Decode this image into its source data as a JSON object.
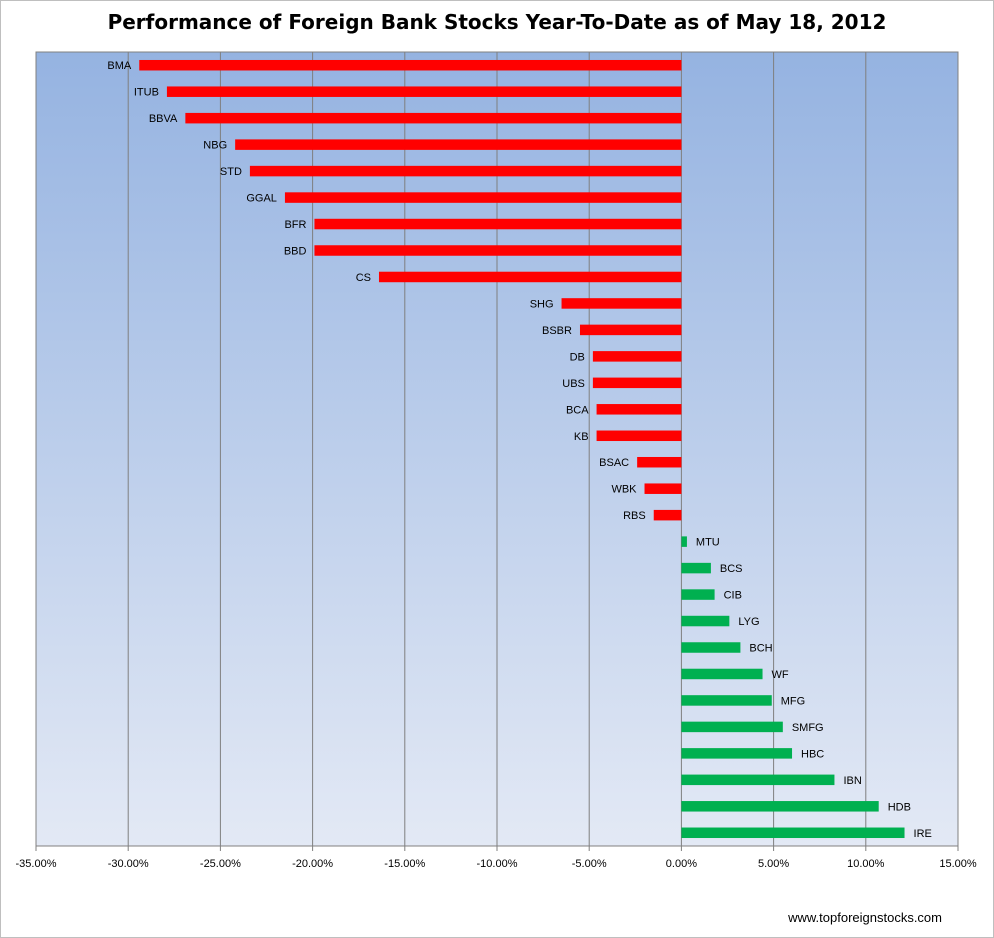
{
  "chart_data": {
    "type": "bar",
    "orientation": "horizontal",
    "title": "Performance of Foreign Bank Stocks Year-To-Date as of May 18, 2012",
    "xlim": [
      -0.35,
      0.15
    ],
    "x_ticks": [
      -0.35,
      -0.3,
      -0.25,
      -0.2,
      -0.15,
      -0.1,
      -0.05,
      0.0,
      0.05,
      0.1,
      0.15
    ],
    "x_tick_labels": [
      "-35.00%",
      "-30.00%",
      "-25.00%",
      "-20.00%",
      "-15.00%",
      "-10.00%",
      "-5.00%",
      "0.00%",
      "5.00%",
      "10.00%",
      "15.00%"
    ],
    "grid": "vertical",
    "legend": "none",
    "colors": {
      "negative": "#ff0000",
      "positive": "#00b050"
    },
    "categories": [
      "BMA",
      "ITUB",
      "BBVA",
      "NBG",
      "STD",
      "GGAL",
      "BFR",
      "BBD",
      "CS",
      "SHG",
      "BSBR",
      "DB",
      "UBS",
      "BCA",
      "KB",
      "BSAC",
      "WBK",
      "RBS",
      "MTU",
      "BCS",
      "CIB",
      "LYG",
      "BCH",
      "WF",
      "MFG",
      "SMFG",
      "HBC",
      "IBN",
      "HDB",
      "IRE"
    ],
    "values": [
      -0.294,
      -0.279,
      -0.269,
      -0.242,
      -0.234,
      -0.215,
      -0.199,
      -0.199,
      -0.164,
      -0.065,
      -0.055,
      -0.048,
      -0.048,
      -0.046,
      -0.046,
      -0.024,
      -0.02,
      -0.015,
      0.003,
      0.016,
      0.018,
      0.026,
      0.032,
      0.044,
      0.049,
      0.055,
      0.06,
      0.083,
      0.107,
      0.121
    ]
  },
  "source": "www.topforeignstocks.com"
}
